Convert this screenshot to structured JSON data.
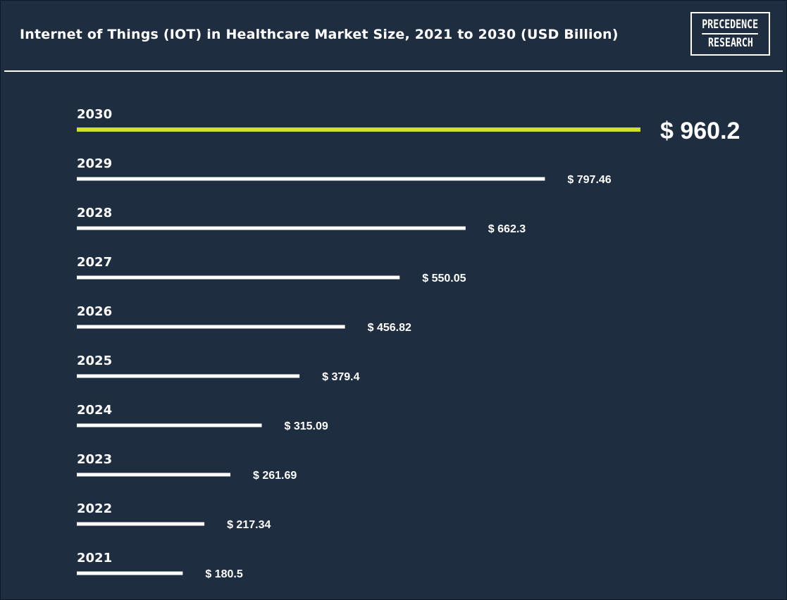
{
  "title": "Internet of Things (IOT) in Healthcare Market Size, 2021 to 2030 (USD Billion)",
  "logo": {
    "line1": "PRECEDENCE",
    "line2": "RESEARCH"
  },
  "colors": {
    "background": "#1e2d40",
    "bar": "#ffffff",
    "highlight_bar": "#cfe02a",
    "text": "#ffffff"
  },
  "chart_data": {
    "type": "bar",
    "orientation": "horizontal",
    "title": "Internet of Things (IOT) in Healthcare Market Size, 2021 to 2030 (USD Billion)",
    "xlabel": "",
    "ylabel": "",
    "grid": false,
    "categories": [
      "2030",
      "2029",
      "2028",
      "2027",
      "2026",
      "2025",
      "2024",
      "2023",
      "2022",
      "2021"
    ],
    "values": [
      960.2,
      797.46,
      662.3,
      550.05,
      456.82,
      379.4,
      315.09,
      261.69,
      217.34,
      180.5
    ],
    "value_labels": [
      "$ 960.2",
      "$ 797.46",
      "$ 662.3",
      "$ 550.05",
      "$ 456.82",
      "$ 379.4",
      "$ 315.09",
      "$ 261.69",
      "$ 217.34",
      "$ 180.5"
    ],
    "highlight_category": "2030"
  }
}
